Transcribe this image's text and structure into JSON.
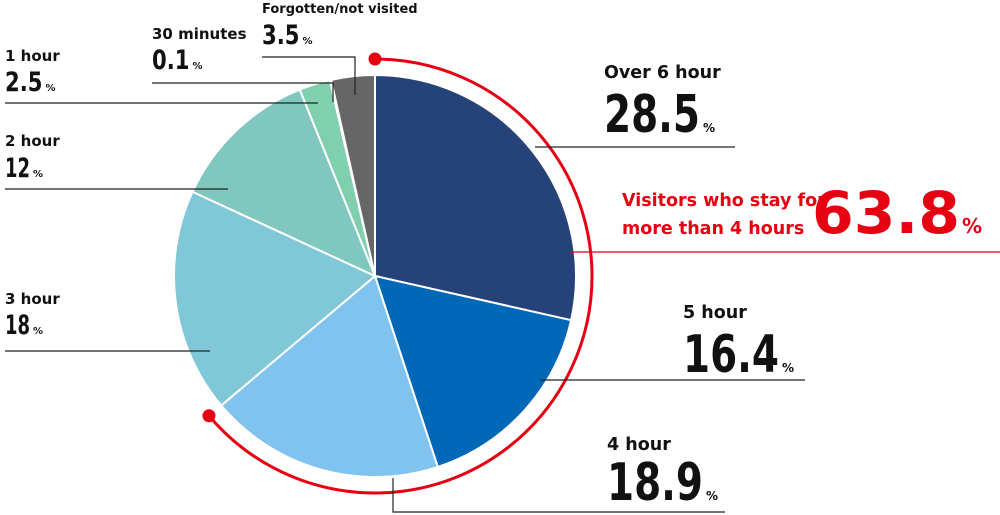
{
  "chart_data": {
    "type": "pie",
    "unit": "%",
    "slices": [
      {
        "label": "Over 6 hour",
        "value": 28.5,
        "value_text": "28.5",
        "color": "#254279"
      },
      {
        "label": "5 hour",
        "value": 16.4,
        "value_text": "16.4",
        "color": "#0068b7"
      },
      {
        "label": "4 hour",
        "value": 18.9,
        "value_text": "18.9",
        "color": "#80c3ee"
      },
      {
        "label": "3 hour",
        "value": 18,
        "value_text": "18",
        "color": "#80c8d8"
      },
      {
        "label": "2 hour",
        "value": 12,
        "value_text": "12",
        "color": "#80c8bf"
      },
      {
        "label": "1 hour",
        "value": 2.5,
        "value_text": "2.5",
        "color": "#80cfae"
      },
      {
        "label": "30 minutes",
        "value": 0.1,
        "value_text": "0.1",
        "color": "#7fbfb0"
      },
      {
        "label": "Forgotten/not visited",
        "value": 3.5,
        "value_text": "3.5",
        "color": "#666666"
      }
    ],
    "highlight": {
      "text_line1": "Visitors who stay for",
      "text_line2": "more than 4 hours",
      "value_text": "63.8",
      "color": "#e60012"
    }
  }
}
